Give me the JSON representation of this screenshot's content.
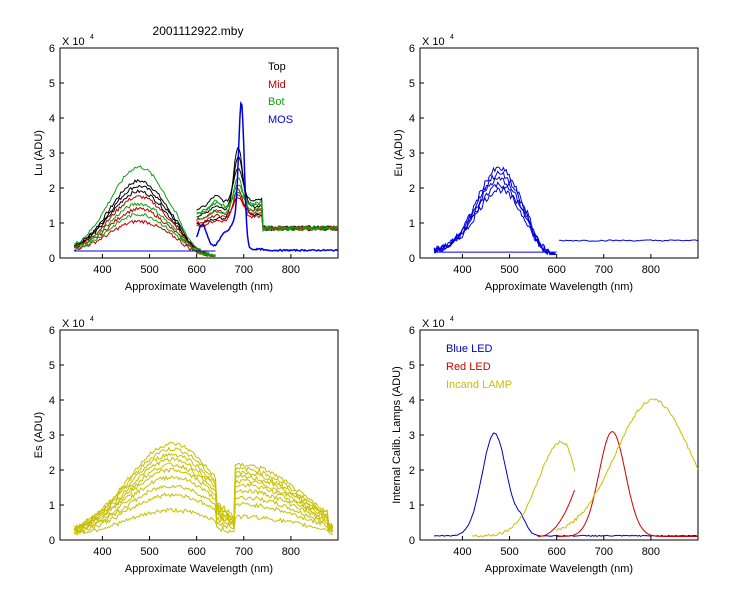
{
  "figure": {
    "title": "2001112922.mby"
  },
  "colors": {
    "top": "#000000",
    "mid": "#c00000",
    "bot": "#10a010",
    "mos": "#0000e0",
    "eu": "#0000e0",
    "es": "#c8c000",
    "blue_led": "#0000c0",
    "red_led": "#d00000",
    "lamp": "#c8c000"
  },
  "chart_data": [
    {
      "id": "lu",
      "type": "line",
      "ylabel": "Lu (ADU)",
      "xlabel": "Approximate Wavelength (nm)",
      "scale_label": "X 10",
      "scale_exp": "4",
      "xlim": [
        310,
        900
      ],
      "ylim": [
        0,
        6
      ],
      "xticks": [
        "400",
        "500",
        "600",
        "700",
        "800"
      ],
      "yticks": [
        "0",
        "1",
        "2",
        "3",
        "4",
        "5",
        "6"
      ],
      "legend": [
        {
          "label": "Top",
          "color_key": "top"
        },
        {
          "label": "Mid",
          "color_key": "mid"
        },
        {
          "label": "Bot",
          "color_key": "bot"
        },
        {
          "label": "MOS",
          "color_key": "mos"
        }
      ],
      "series_groups": [
        {
          "name": "Top",
          "color_key": "top",
          "peaks_a": [
            2.2,
            2.05,
            1.9
          ],
          "peaks_b": [
            0.95,
            1.2,
            1.4
          ],
          "spike": [
            3.0,
            2.7,
            2.4
          ]
        },
        {
          "name": "Mid",
          "color_key": "mid",
          "peaks_a": [
            1.75,
            1.4,
            1.05
          ],
          "peaks_b": [
            0.9,
            1.0,
            1.1
          ],
          "spike": [
            1.8,
            1.6,
            1.5
          ]
        },
        {
          "name": "Bot",
          "color_key": "bot",
          "peaks_a": [
            2.6,
            1.55,
            1.25
          ],
          "peaks_b": [
            1.1,
            1.25,
            1.3
          ],
          "spike": [
            2.1,
            1.9,
            1.7
          ]
        }
      ],
      "mos": {
        "name": "MOS",
        "color_key": "mos",
        "peak_nm": 695,
        "peak_value": 4.4
      }
    },
    {
      "id": "eu",
      "type": "line",
      "ylabel": "Eu  (ADU)",
      "xlabel": "Approximate Wavelength (nm)",
      "scale_label": "X 10",
      "scale_exp": "4",
      "xlim": [
        310,
        900
      ],
      "ylim": [
        0,
        6
      ],
      "xticks": [
        "400",
        "500",
        "600",
        "700",
        "800"
      ],
      "yticks": [
        "0",
        "1",
        "2",
        "3",
        "4",
        "5",
        "6"
      ],
      "series_group": {
        "name": "Eu",
        "color_key": "eu",
        "peaks": [
          2.55,
          2.4,
          2.25,
          2.1,
          1.95
        ]
      },
      "baseline_low": 0.17,
      "baseline_high": 0.5
    },
    {
      "id": "es",
      "type": "line",
      "ylabel": "Es  (ADU)",
      "xlabel": "Approximate Wavelength (nm)",
      "scale_label": "X 10",
      "scale_exp": "4",
      "xlim": [
        310,
        900
      ],
      "ylim": [
        0,
        6
      ],
      "xticks": [
        "400",
        "500",
        "600",
        "700",
        "800"
      ],
      "yticks": [
        "0",
        "1",
        "2",
        "3",
        "4",
        "5",
        "6"
      ],
      "series_group": {
        "name": "Es",
        "color_key": "es",
        "peaks": [
          2.75,
          2.6,
          2.45,
          2.3,
          2.15,
          2.0,
          1.8,
          1.55,
          1.3,
          0.85
        ]
      }
    },
    {
      "id": "cal",
      "type": "line",
      "ylabel": "Internal Calib. Lamps (ADU)",
      "xlabel": "Approximate Wavelength (nm)",
      "scale_label": "X 10",
      "scale_exp": "4",
      "xlim": [
        310,
        900
      ],
      "ylim": [
        0,
        6
      ],
      "xticks": [
        "400",
        "500",
        "600",
        "700",
        "800"
      ],
      "yticks": [
        "0",
        "1",
        "2",
        "3",
        "4",
        "5",
        "6"
      ],
      "legend": [
        {
          "label": "Blue LED",
          "color_key": "blue_led"
        },
        {
          "label": "Red LED",
          "color_key": "red_led"
        },
        {
          "label": "Incand LAMP",
          "color_key": "lamp"
        }
      ],
      "blue_led": {
        "peak_nm": 468,
        "peak_value": 3.05
      },
      "red_led": {
        "peak_nm": 718,
        "peak_value": 3.1
      },
      "lamp_seg1_peak": {
        "nm": 610,
        "value": 2.8
      },
      "lamp_seg2_peak": {
        "nm": 805,
        "value": 4.0
      }
    }
  ]
}
